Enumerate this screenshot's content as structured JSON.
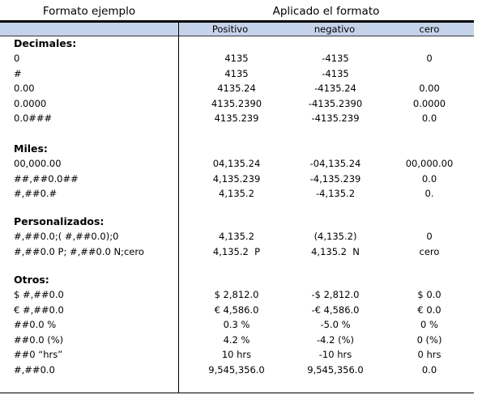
{
  "header": {
    "left_title": "Formato ejemplo",
    "right_title": "Aplicado  el formato",
    "col_positivo": "Positivo",
    "col_negativo": "negativo",
    "col_cero": "cero"
  },
  "sections": [
    {
      "title": "Decimales:",
      "rows": [
        {
          "fmt": "0",
          "pos": "4135",
          "neg": "-4135",
          "zero": "0"
        },
        {
          "fmt": "#",
          "pos": "4135",
          "neg": "-4135",
          "zero": ""
        },
        {
          "fmt": "0.00",
          "pos": "4135.24",
          "neg": "-4135.24",
          "zero": "0.00"
        },
        {
          "fmt": "0.0000",
          "pos": "4135.2390",
          "neg": "-4135.2390",
          "zero": "0.0000"
        },
        {
          "fmt": "0.0###",
          "pos": "4135.239",
          "neg": "-4135.239",
          "zero": "0.0"
        }
      ]
    },
    {
      "title": "Miles:",
      "rows": [
        {
          "fmt": "00,000.00",
          "pos": "04,135.24",
          "neg": "-04,135.24",
          "zero": "00,000.00"
        },
        {
          "fmt": "##,##0.0##",
          "pos": "4,135.239",
          "neg": "-4,135.239",
          "zero": "0.0"
        },
        {
          "fmt": "#,##0.#",
          "pos": "4,135.2",
          "neg": "-4,135.2",
          "zero": "0."
        }
      ]
    },
    {
      "title": "Personalizados:",
      "rows": [
        {
          "fmt": "#,##0.0;( #,##0.0);0",
          "pos": "4,135.2",
          "neg": "(4,135.2)",
          "zero": "0"
        },
        {
          "fmt": "#,##0.0 P; #,##0.0 N;cero",
          "pos": "4,135.2  P",
          "neg": "4,135.2  N",
          "zero": "cero"
        }
      ]
    },
    {
      "title": "Otros:",
      "rows": [
        {
          "fmt": "$ #,##0.0",
          "pos": "$ 2,812.0",
          "neg": "-$ 2,812.0",
          "zero": "$ 0.0"
        },
        {
          "fmt": "€ #,##0.0",
          "pos": "€ 4,586.0",
          "neg": "-€ 4,586.0",
          "zero": "€ 0.0"
        },
        {
          "fmt": "##0.0 %",
          "pos": "0.3 %",
          "neg": "-5.0 %",
          "zero": "0 %"
        },
        {
          "fmt": "##0.0 (%)",
          "pos": "4.2 %",
          "neg": "-4.2 (%)",
          "zero": "0 (%)"
        },
        {
          "fmt": "##0 “hrs”",
          "pos": "10 hrs",
          "neg": "-10 hrs",
          "zero": "0 hrs"
        },
        {
          "fmt": "#,##0.0",
          "pos": "9,545,356.0",
          "neg": "9,545,356.0",
          "zero": "0.0"
        }
      ]
    }
  ]
}
